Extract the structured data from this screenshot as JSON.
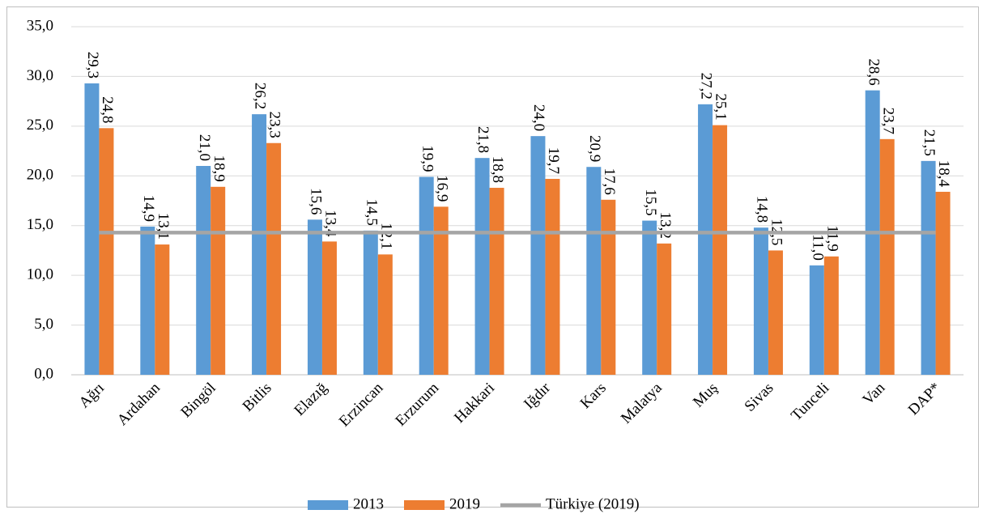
{
  "chart_data": {
    "type": "bar",
    "categories": [
      "Ağrı",
      "Ardahan",
      "Bingöl",
      "Bitlis",
      "Elazığ",
      "Erzincan",
      "Erzurum",
      "Hakkari",
      "Iğdır",
      "Kars",
      "Malatya",
      "Muş",
      "Sivas",
      "Tunceli",
      "Van",
      "DAP*"
    ],
    "series": [
      {
        "name": "2013",
        "color": "#5b9bd5",
        "values": [
          29.3,
          14.9,
          21.0,
          26.2,
          15.6,
          14.5,
          19.9,
          21.8,
          24.0,
          20.9,
          15.5,
          27.2,
          14.8,
          11.0,
          28.6,
          21.5
        ],
        "value_labels": [
          "29,3",
          "14,9",
          "21,0",
          "26,2",
          "15,6",
          "14,5",
          "19,9",
          "21,8",
          "24,0",
          "20,9",
          "15,5",
          "27,2",
          "14,8",
          "11,0",
          "28,6",
          "21,5"
        ]
      },
      {
        "name": "2019",
        "color": "#ed7d31",
        "values": [
          24.8,
          13.1,
          18.9,
          23.3,
          13.4,
          12.1,
          16.9,
          18.8,
          19.7,
          17.6,
          13.2,
          25.1,
          12.5,
          11.9,
          23.7,
          18.4
        ],
        "value_labels": [
          "24,8",
          "13,1",
          "18,9",
          "23,3",
          "13,4",
          "12,1",
          "16,9",
          "18,8",
          "19,7",
          "17,6",
          "13,2",
          "25,1",
          "12,5",
          "11,9",
          "23,7",
          "18,4"
        ]
      },
      {
        "name": "Türkiye (2019)",
        "type": "line",
        "color": "#a5a5a5",
        "values": [
          14.3,
          14.3,
          14.3,
          14.3,
          14.3,
          14.3,
          14.3,
          14.3,
          14.3,
          14.3,
          14.3,
          14.3,
          14.3,
          14.3,
          14.3,
          14.3
        ]
      }
    ],
    "ylim": [
      0,
      35
    ],
    "yticks": [
      {
        "value": 0,
        "label": "0,0"
      },
      {
        "value": 5,
        "label": "5,0"
      },
      {
        "value": 10,
        "label": "10,0"
      },
      {
        "value": 15,
        "label": "15,0"
      },
      {
        "value": 20,
        "label": "20,0"
      },
      {
        "value": 25,
        "label": "25,0"
      },
      {
        "value": 30,
        "label": "30,0"
      },
      {
        "value": 35,
        "label": "35,0"
      }
    ],
    "grid": true,
    "legend": "bottom"
  }
}
